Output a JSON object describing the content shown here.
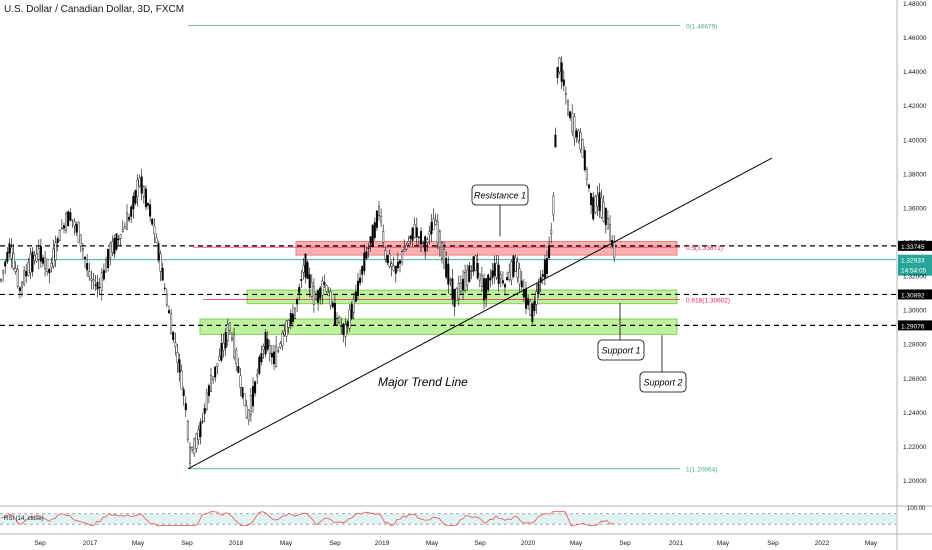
{
  "chart_title": "U.S. Dollar / Canadian Dollar, 3D, FXCM",
  "colors": {
    "candle": "#000000",
    "fib": "#4caf84",
    "fib_red": "#e91e63",
    "zone_red_fill": "#f7a3a3",
    "zone_red_stroke": "#f06a6a",
    "zone_green_fill": "#b5ef8f",
    "zone_green_stroke": "#72c93a",
    "price_tag": "#26a69a",
    "hline": "#000000",
    "rsi_line": "#ef5350",
    "rsi_band": "#e0f2f1"
  },
  "chart_data": {
    "type": "candlestick",
    "symbol": "U.S. Dollar / Canadian Dollar",
    "timeframe": "3D",
    "source": "FXCM",
    "ylim": [
      1.18,
      1.48
    ],
    "y_ticks": [
      "1.48000",
      "1.46000",
      "1.44000",
      "1.42000",
      "1.40000",
      "1.38000",
      "1.36000",
      "1.34000",
      "1.32000",
      "1.30000",
      "1.28000",
      "1.26000",
      "1.24000",
      "1.22000",
      "1.20000"
    ],
    "x_ticks": [
      "Sep",
      "2017",
      "May",
      "Sep",
      "2018",
      "May",
      "Sep",
      "2019",
      "May",
      "Sep",
      "2020",
      "May",
      "Sep",
      "2021",
      "May",
      "Sep",
      "2022",
      "May"
    ],
    "price_path": [
      [
        0,
        1.315
      ],
      [
        10,
        1.338
      ],
      [
        20,
        1.312
      ],
      [
        30,
        1.327
      ],
      [
        40,
        1.333
      ],
      [
        50,
        1.322
      ],
      [
        60,
        1.345
      ],
      [
        70,
        1.356
      ],
      [
        80,
        1.343
      ],
      [
        90,
        1.318
      ],
      [
        100,
        1.313
      ],
      [
        110,
        1.334
      ],
      [
        120,
        1.343
      ],
      [
        130,
        1.355
      ],
      [
        140,
        1.376
      ],
      [
        150,
        1.358
      ],
      [
        160,
        1.33
      ],
      [
        170,
        1.295
      ],
      [
        180,
        1.265
      ],
      [
        186,
        1.243
      ],
      [
        190,
        1.215
      ],
      [
        200,
        1.228
      ],
      [
        210,
        1.255
      ],
      [
        220,
        1.272
      ],
      [
        230,
        1.29
      ],
      [
        240,
        1.26
      ],
      [
        248,
        1.236
      ],
      [
        255,
        1.255
      ],
      [
        265,
        1.282
      ],
      [
        275,
        1.27
      ],
      [
        285,
        1.288
      ],
      [
        295,
        1.298
      ],
      [
        305,
        1.328
      ],
      [
        315,
        1.305
      ],
      [
        325,
        1.316
      ],
      [
        335,
        1.298
      ],
      [
        345,
        1.286
      ],
      [
        355,
        1.305
      ],
      [
        365,
        1.33
      ],
      [
        375,
        1.348
      ],
      [
        380,
        1.36
      ],
      [
        385,
        1.333
      ],
      [
        395,
        1.322
      ],
      [
        405,
        1.335
      ],
      [
        415,
        1.347
      ],
      [
        425,
        1.338
      ],
      [
        435,
        1.352
      ],
      [
        445,
        1.328
      ],
      [
        455,
        1.307
      ],
      [
        465,
        1.316
      ],
      [
        475,
        1.328
      ],
      [
        485,
        1.311
      ],
      [
        495,
        1.325
      ],
      [
        505,
        1.315
      ],
      [
        515,
        1.328
      ],
      [
        525,
        1.308
      ],
      [
        533,
        1.298
      ],
      [
        540,
        1.317
      ],
      [
        548,
        1.328
      ],
      [
        553,
        1.355
      ],
      [
        558,
        1.448
      ],
      [
        563,
        1.436
      ],
      [
        568,
        1.418
      ],
      [
        573,
        1.408
      ],
      [
        578,
        1.402
      ],
      [
        583,
        1.395
      ],
      [
        588,
        1.375
      ],
      [
        593,
        1.36
      ],
      [
        598,
        1.365
      ],
      [
        603,
        1.358
      ],
      [
        608,
        1.351
      ],
      [
        612,
        1.34
      ],
      [
        615,
        1.332
      ]
    ],
    "current_price": "1.32933",
    "countdown": "14:54:05",
    "horizontal_levels": [
      "1.33745",
      "1.30892",
      "1.29076"
    ],
    "fib_levels": [
      {
        "label": "0(1.46679)",
        "value": 1.46679
      },
      {
        "label": "0.5(1.33671)",
        "value": 1.33671
      },
      {
        "label": "0.618(1.30602)",
        "value": 1.30602
      },
      {
        "label": "1(1.20664)",
        "value": 1.20664
      }
    ],
    "zones": [
      {
        "name": "Resistance 1",
        "low": 1.332,
        "high": 1.34
      },
      {
        "name": "Support 1",
        "low": 1.3035,
        "high": 1.3115
      },
      {
        "name": "Support 2",
        "low": 1.2855,
        "high": 1.2945
      }
    ],
    "annotations": [
      "Resistance 1",
      "Support 1",
      "Support 2",
      "Major Trend Line"
    ],
    "trend_line": {
      "x1_bar": 188,
      "y1": 1.2066,
      "x2_bar": 772,
      "y2": 1.389
    },
    "rsi": {
      "label": "RSI (14, close)",
      "ylim": [
        0,
        100
      ],
      "band": [
        30,
        70
      ],
      "top_label": "100.00"
    }
  }
}
